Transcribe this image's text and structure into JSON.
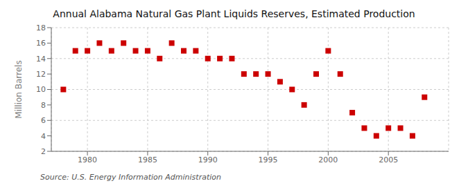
{
  "chart_data": {
    "type": "scatter",
    "title": "Annual Alabama Natural Gas Plant Liquids Reserves, Estimated Production",
    "ylabel": "Million Barrels",
    "annotations": [
      "Source: U.S. Energy Information Administration"
    ],
    "x": [
      1978,
      1979,
      1980,
      1981,
      1982,
      1983,
      1984,
      1985,
      1986,
      1987,
      1988,
      1989,
      1990,
      1991,
      1992,
      1993,
      1994,
      1995,
      1996,
      1997,
      1998,
      1999,
      2000,
      2001,
      2002,
      2003,
      2004,
      2005,
      2006,
      2007,
      2008
    ],
    "values": [
      10,
      15,
      15,
      16,
      15,
      16,
      15,
      15,
      14,
      16,
      15,
      15,
      14,
      14,
      14,
      12,
      12,
      12,
      11,
      10,
      8,
      12,
      15,
      12,
      7,
      5,
      4,
      5,
      5,
      4,
      9
    ],
    "color": "#cc0000",
    "marker": "square",
    "xlim": [
      1977,
      2010
    ],
    "ylim": [
      2,
      18
    ],
    "xticks": [
      1980,
      1985,
      1990,
      1995,
      2000,
      2005
    ],
    "yticks": [
      2,
      4,
      6,
      8,
      10,
      12,
      14,
      16,
      18
    ],
    "grid": true
  }
}
